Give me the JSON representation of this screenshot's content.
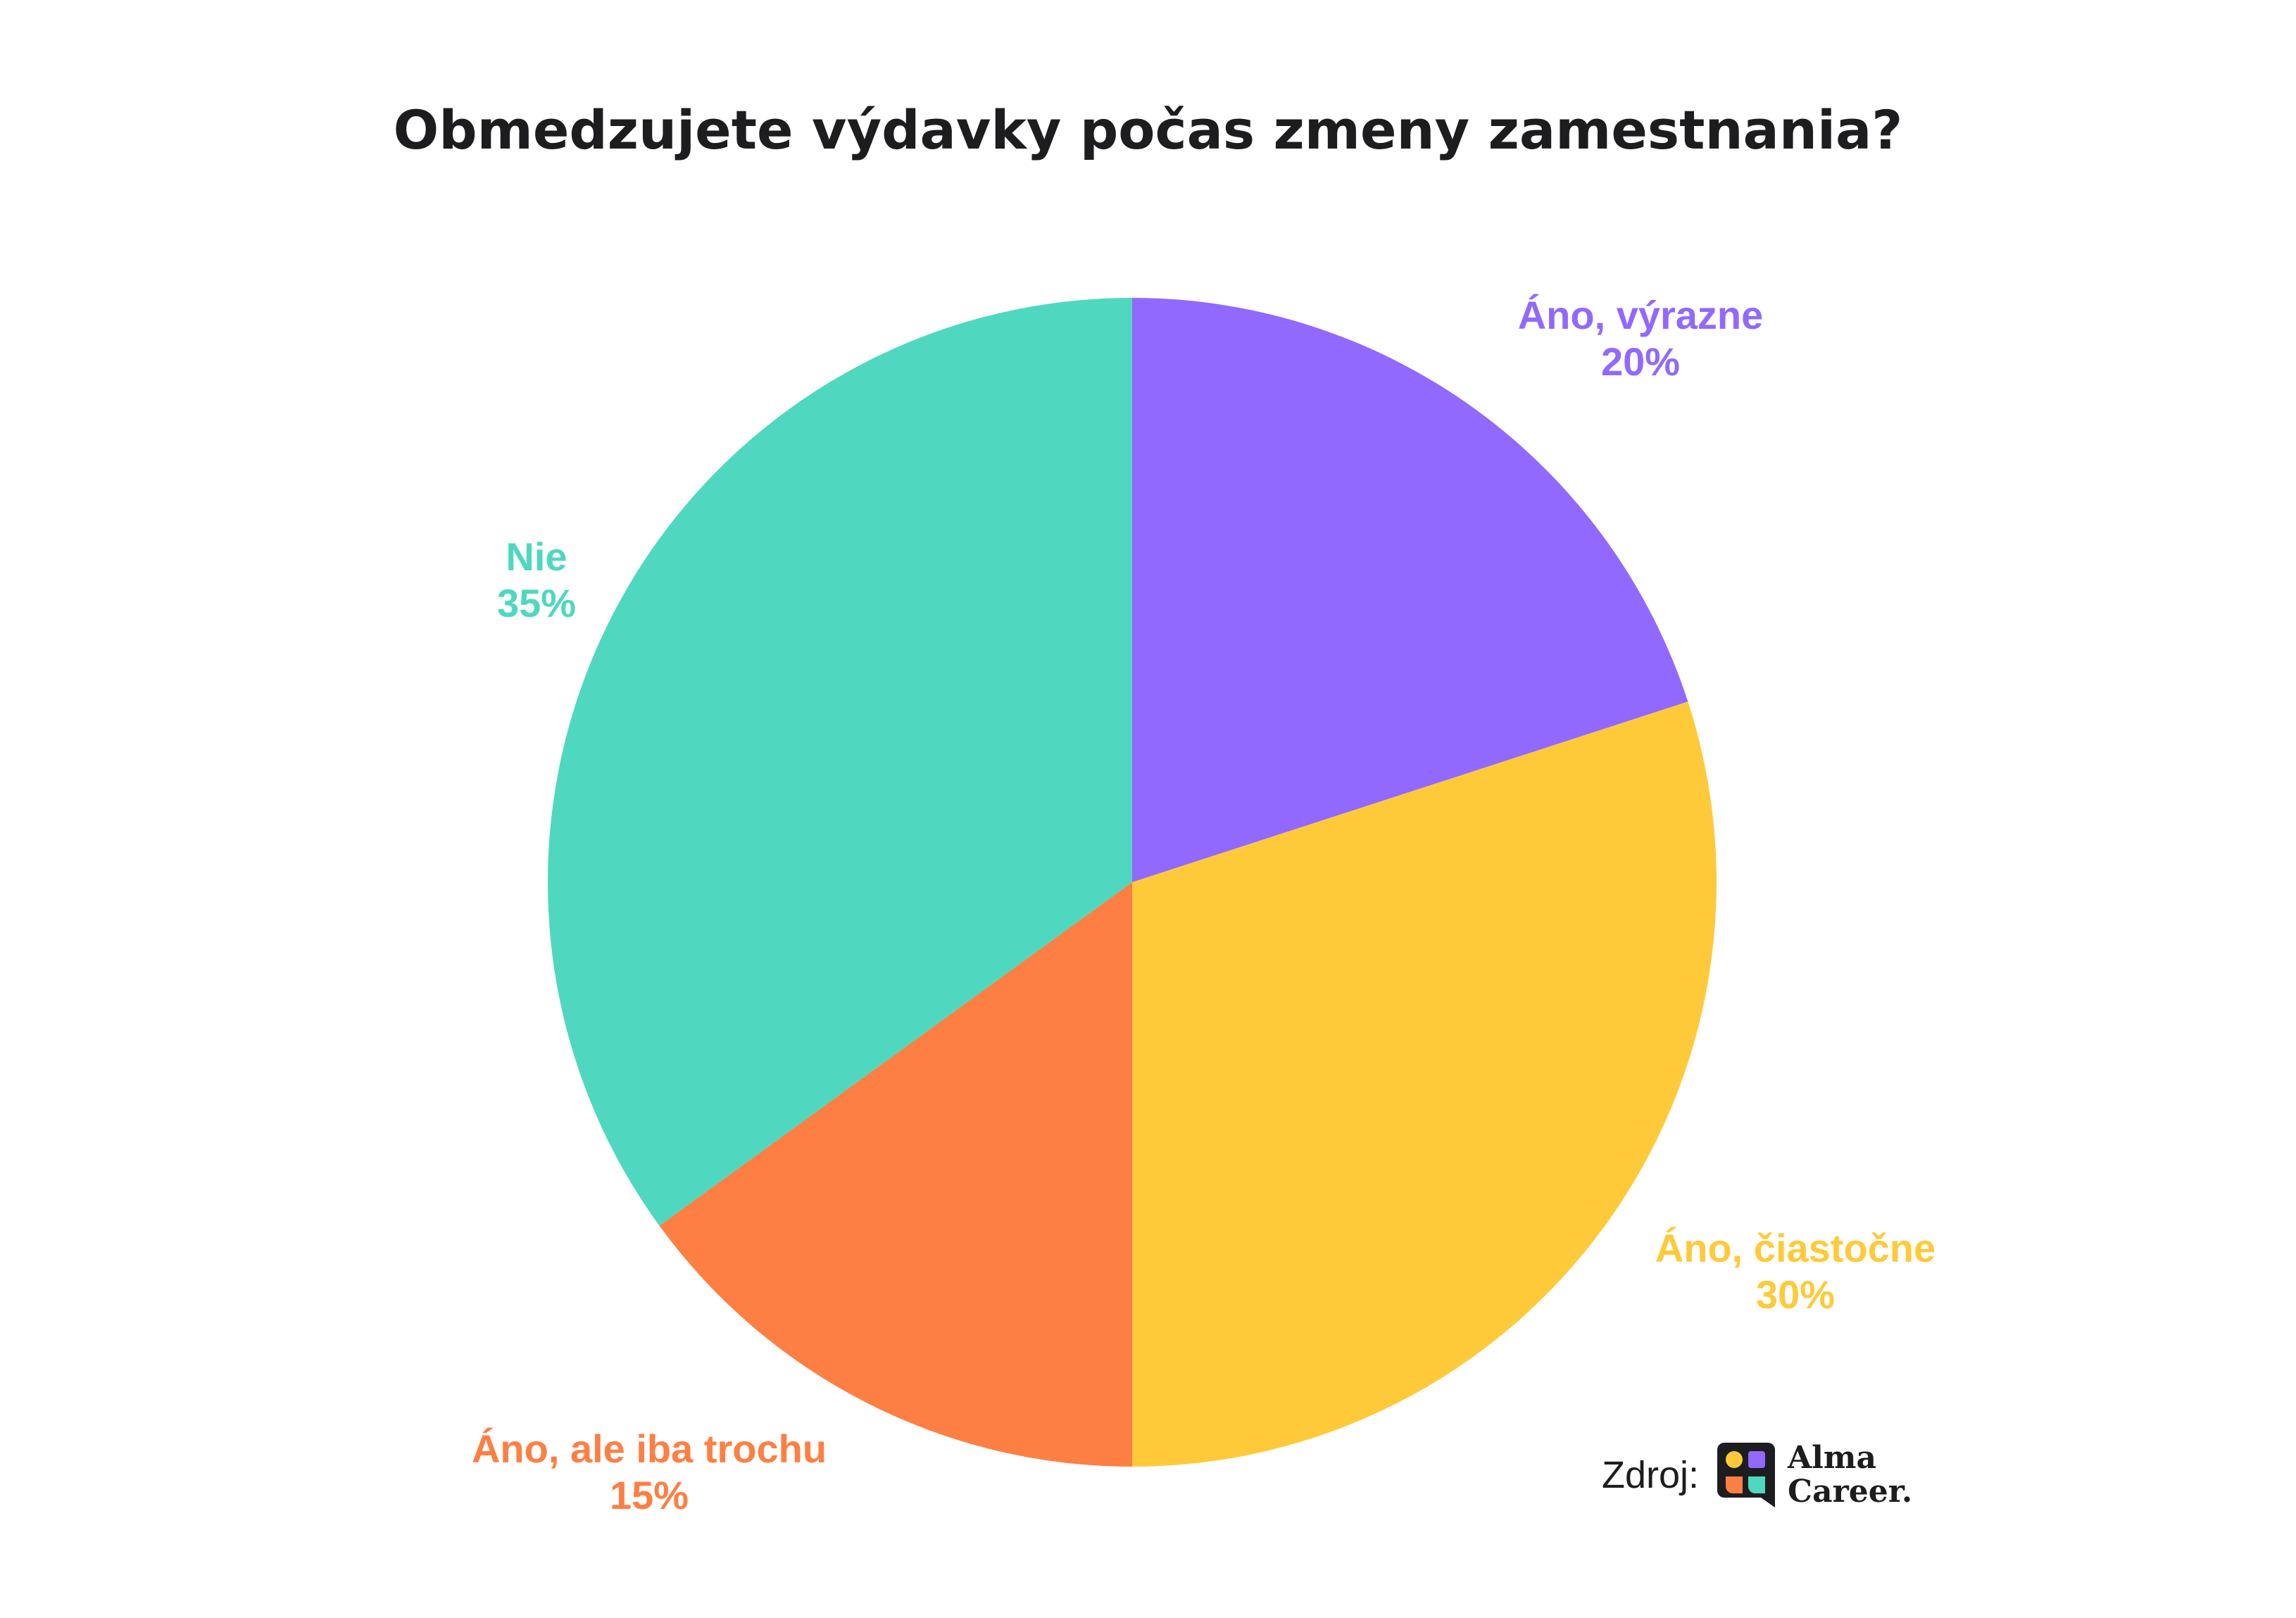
{
  "chart_data": {
    "type": "pie",
    "title": "Obmedzujete výdavky počas zmeny zamestnania?",
    "slices": [
      {
        "label": "Áno, výrazne",
        "value": 20,
        "value_label": "20%",
        "color": "#9169fe"
      },
      {
        "label": "Áno, čiastočne",
        "value": 30,
        "value_label": "30%",
        "color": "#ffca3a"
      },
      {
        "label": "Áno, ale iba trochu",
        "value": 15,
        "value_label": "15%",
        "color": "#fe7f43"
      },
      {
        "label": "Nie",
        "value": 35,
        "value_label": "35%",
        "color": "#4fd8bf"
      }
    ],
    "start_angle": "top",
    "direction": "clockwise"
  },
  "source": {
    "label": "Zdroj:",
    "brand_line1": "Alma",
    "brand_line2": "Career.",
    "logo_icon": "alma-career-logo-icon"
  }
}
